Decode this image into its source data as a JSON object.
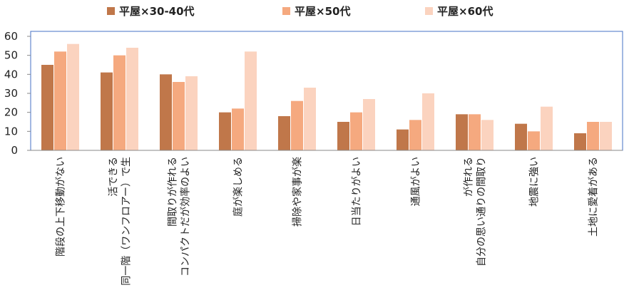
{
  "chart_data": {
    "type": "bar",
    "categories": [
      [
        "階段の上下移動がない"
      ],
      [
        "同一階（ワンフロアー）で生",
        "活できる"
      ],
      [
        "コンパクトだが効率のよい",
        "間取りが作れる"
      ],
      [
        "庭が楽しめる"
      ],
      [
        "掃除や家事が楽"
      ],
      [
        "日当たりがよい"
      ],
      [
        "通風がよい"
      ],
      [
        "自分の思い通りの間取り",
        "が作れる"
      ],
      [
        "地震に強い"
      ],
      [
        "土地に愛着がある"
      ]
    ],
    "series": [
      {
        "name": "平屋×30-40代",
        "color": "#c0774a",
        "values": [
          45,
          41,
          40,
          20,
          18,
          15,
          11,
          19,
          14,
          9
        ]
      },
      {
        "name": "平屋×50代",
        "color": "#f5a97f",
        "values": [
          52,
          50,
          36,
          22,
          26,
          20,
          16,
          19,
          10,
          15
        ]
      },
      {
        "name": "平屋×60代",
        "color": "#fbd3bf",
        "values": [
          56,
          54,
          39,
          52,
          33,
          27,
          30,
          16,
          23,
          15
        ]
      }
    ],
    "yticks": [
      0,
      10,
      20,
      30,
      40,
      50,
      60
    ],
    "ylim": [
      0,
      60
    ],
    "legend_position": "top",
    "grid": false,
    "frame_color": "#4472c4"
  }
}
